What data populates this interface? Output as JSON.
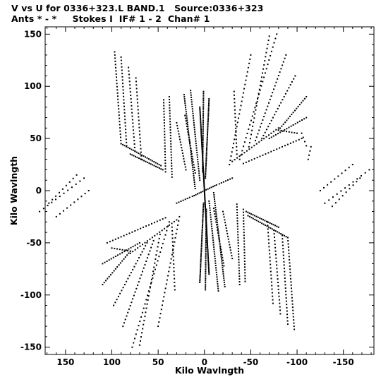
{
  "header": {
    "line1": "V vs U for 0336+323.L BAND.1   Source:0336+323",
    "line2": "Ants * - *     Stokes I  IF# 1 - 2  Chan# 1"
  },
  "chart_data": {
    "type": "scatter",
    "title": "V vs U for 0336+323.L BAND.1   Source:0336+323",
    "subtitle": "Ants * - *     Stokes I  IF# 1 - 2  Chan# 1",
    "xlabel": "Kilo Wavlngth",
    "ylabel": "Kilo Wavlngth",
    "xlim": [
      172,
      -183
    ],
    "ylim": [
      -157,
      157
    ],
    "x_reversed": true,
    "xticks": [
      150,
      100,
      50,
      0,
      -50,
      -100,
      -150
    ],
    "yticks": [
      -150,
      -100,
      -50,
      0,
      50,
      100,
      150
    ],
    "grid": false,
    "marker_color": "#000000",
    "tracks": [
      {
        "u0": 0,
        "v0": 0,
        "u1": -13,
        "v1": 5.5,
        "n": 8
      },
      {
        "u0": -16,
        "v0": 6.5,
        "u1": -30,
        "v1": 12,
        "n": 7
      },
      {
        "u0": 0,
        "v0": 0,
        "u1": 13,
        "v1": -5.5,
        "n": 8
      },
      {
        "u0": 16,
        "v0": -6.5,
        "u1": 30,
        "v1": -12,
        "n": 7
      },
      {
        "u0": 0,
        "v0": 0,
        "u1": 5,
        "v1": 80,
        "n": 60
      },
      {
        "u0": 0,
        "v0": 0,
        "u1": -5,
        "v1": -80,
        "n": 60
      },
      {
        "u0": -1,
        "v0": 12,
        "u1": -5,
        "v1": 88,
        "n": 50
      },
      {
        "u0": 1,
        "v0": -12,
        "u1": 5,
        "v1": -88,
        "n": 50
      },
      {
        "u0": 2,
        "v0": 18,
        "u1": 1,
        "v1": 95,
        "n": 45
      },
      {
        "u0": -2,
        "v0": -18,
        "u1": -1,
        "v1": -95,
        "n": 45
      },
      {
        "u0": 10,
        "v0": 2,
        "u1": 22,
        "v1": 92,
        "n": 45
      },
      {
        "u0": -10,
        "v0": -2,
        "u1": -22,
        "v1": -92,
        "n": 45
      },
      {
        "u0": 5,
        "v0": 10,
        "u1": 15,
        "v1": 96,
        "n": 40
      },
      {
        "u0": -5,
        "v0": -10,
        "u1": -15,
        "v1": -96,
        "n": 40
      },
      {
        "u0": 35,
        "v0": 13,
        "u1": 38,
        "v1": 90,
        "n": 30
      },
      {
        "u0": -35,
        "v0": -13,
        "u1": -38,
        "v1": -90,
        "n": 30
      },
      {
        "u0": 42,
        "v0": 18,
        "u1": 44,
        "v1": 87,
        "n": 26
      },
      {
        "u0": -42,
        "v0": -18,
        "u1": -44,
        "v1": -87,
        "n": 26
      },
      {
        "u0": 10,
        "v0": 17,
        "u1": 21,
        "v1": 72,
        "n": 22
      },
      {
        "u0": -10,
        "v0": -17,
        "u1": -21,
        "v1": -72,
        "n": 22
      },
      {
        "u0": -20,
        "v0": -20,
        "u1": -30,
        "v1": -65,
        "n": 18
      },
      {
        "u0": 20,
        "v0": 20,
        "u1": 30,
        "v1": 65,
        "n": 18
      },
      {
        "u0": 90,
        "v0": 45,
        "u1": 97,
        "v1": 133,
        "n": 30
      },
      {
        "u0": -90,
        "v0": -45,
        "u1": -97,
        "v1": -133,
        "n": 30
      },
      {
        "u0": 84,
        "v0": 43,
        "u1": 90,
        "v1": 128,
        "n": 28
      },
      {
        "u0": -84,
        "v0": -43,
        "u1": -90,
        "v1": -128,
        "n": 28
      },
      {
        "u0": 75,
        "v0": 38,
        "u1": 82,
        "v1": 118,
        "n": 25
      },
      {
        "u0": -75,
        "v0": -38,
        "u1": -82,
        "v1": -118,
        "n": 25
      },
      {
        "u0": 68,
        "v0": 30,
        "u1": 74,
        "v1": 108,
        "n": 24
      },
      {
        "u0": -68,
        "v0": -30,
        "u1": -74,
        "v1": -108,
        "n": 24
      },
      {
        "u0": 90,
        "v0": 45,
        "u1": 47,
        "v1": 24,
        "n": 24
      },
      {
        "u0": -90,
        "v0": -45,
        "u1": -47,
        "v1": -24,
        "n": 24
      },
      {
        "u0": 80,
        "v0": 35,
        "u1": 45,
        "v1": 20,
        "n": 20
      },
      {
        "u0": -80,
        "v0": -35,
        "u1": -45,
        "v1": -20,
        "n": 20
      },
      {
        "u0": -38,
        "v0": 30,
        "u1": -78,
        "v1": 150,
        "n": 30
      },
      {
        "u0": 38,
        "v0": -30,
        "u1": 78,
        "v1": -150,
        "n": 30
      },
      {
        "u0": -48,
        "v0": 42,
        "u1": -70,
        "v1": 148,
        "n": 28
      },
      {
        "u0": 48,
        "v0": -42,
        "u1": 70,
        "v1": -148,
        "n": 28
      },
      {
        "u0": -27,
        "v0": 25,
        "u1": -50,
        "v1": 130,
        "n": 27
      },
      {
        "u0": 27,
        "v0": -25,
        "u1": 50,
        "v1": -130,
        "n": 27
      },
      {
        "u0": -55,
        "v0": 48,
        "u1": -88,
        "v1": 130,
        "n": 26
      },
      {
        "u0": 55,
        "v0": -48,
        "u1": 88,
        "v1": -130,
        "n": 26
      },
      {
        "u0": -62,
        "v0": 50,
        "u1": -98,
        "v1": 110,
        "n": 22
      },
      {
        "u0": 62,
        "v0": -50,
        "u1": 98,
        "v1": -110,
        "n": 22
      },
      {
        "u0": -80,
        "v0": 58,
        "u1": -110,
        "v1": 90,
        "n": 18
      },
      {
        "u0": 80,
        "v0": -58,
        "u1": 110,
        "v1": -90,
        "n": 18
      },
      {
        "u0": -70,
        "v0": 50,
        "u1": -110,
        "v1": 70,
        "n": 18
      },
      {
        "u0": 70,
        "v0": -50,
        "u1": 110,
        "v1": -70,
        "n": 18
      },
      {
        "u0": -30,
        "v0": 28,
        "u1": -80,
        "v1": 60,
        "n": 20
      },
      {
        "u0": 30,
        "v0": -28,
        "u1": 80,
        "v1": -60,
        "n": 20
      },
      {
        "u0": -42,
        "v0": 26,
        "u1": -105,
        "v1": 50,
        "n": 22
      },
      {
        "u0": 42,
        "v0": -26,
        "u1": 105,
        "v1": -50,
        "n": 22
      },
      {
        "u0": -80,
        "v0": 58,
        "u1": -100,
        "v1": 55,
        "n": 8
      },
      {
        "u0": 80,
        "v0": -58,
        "u1": 100,
        "v1": -55,
        "n": 8
      },
      {
        "u0": -125,
        "v0": 0,
        "u1": -160,
        "v1": 25,
        "n": 10
      },
      {
        "u0": -130,
        "v0": -12,
        "u1": -178,
        "v1": 20,
        "n": 12
      },
      {
        "u0": -138,
        "v0": -15,
        "u1": -168,
        "v1": 12,
        "n": 9
      },
      {
        "u0": 125,
        "v0": 0,
        "u1": 160,
        "v1": -25,
        "n": 10
      },
      {
        "u0": 130,
        "v0": 12,
        "u1": 178,
        "v1": -20,
        "n": 12
      },
      {
        "u0": 138,
        "v0": 15,
        "u1": 168,
        "v1": -12,
        "n": 9
      },
      {
        "u0": -110,
        "v0": 43,
        "u1": -105,
        "v1": 55,
        "n": 4
      },
      {
        "u0": -112,
        "v0": 30,
        "u1": -115,
        "v1": 42,
        "n": 4
      },
      {
        "u0": 35,
        "v0": -35,
        "u1": 32,
        "v1": -95,
        "n": 18
      },
      {
        "u0": -35,
        "v0": 35,
        "u1": -32,
        "v1": 95,
        "n": 18
      }
    ]
  }
}
